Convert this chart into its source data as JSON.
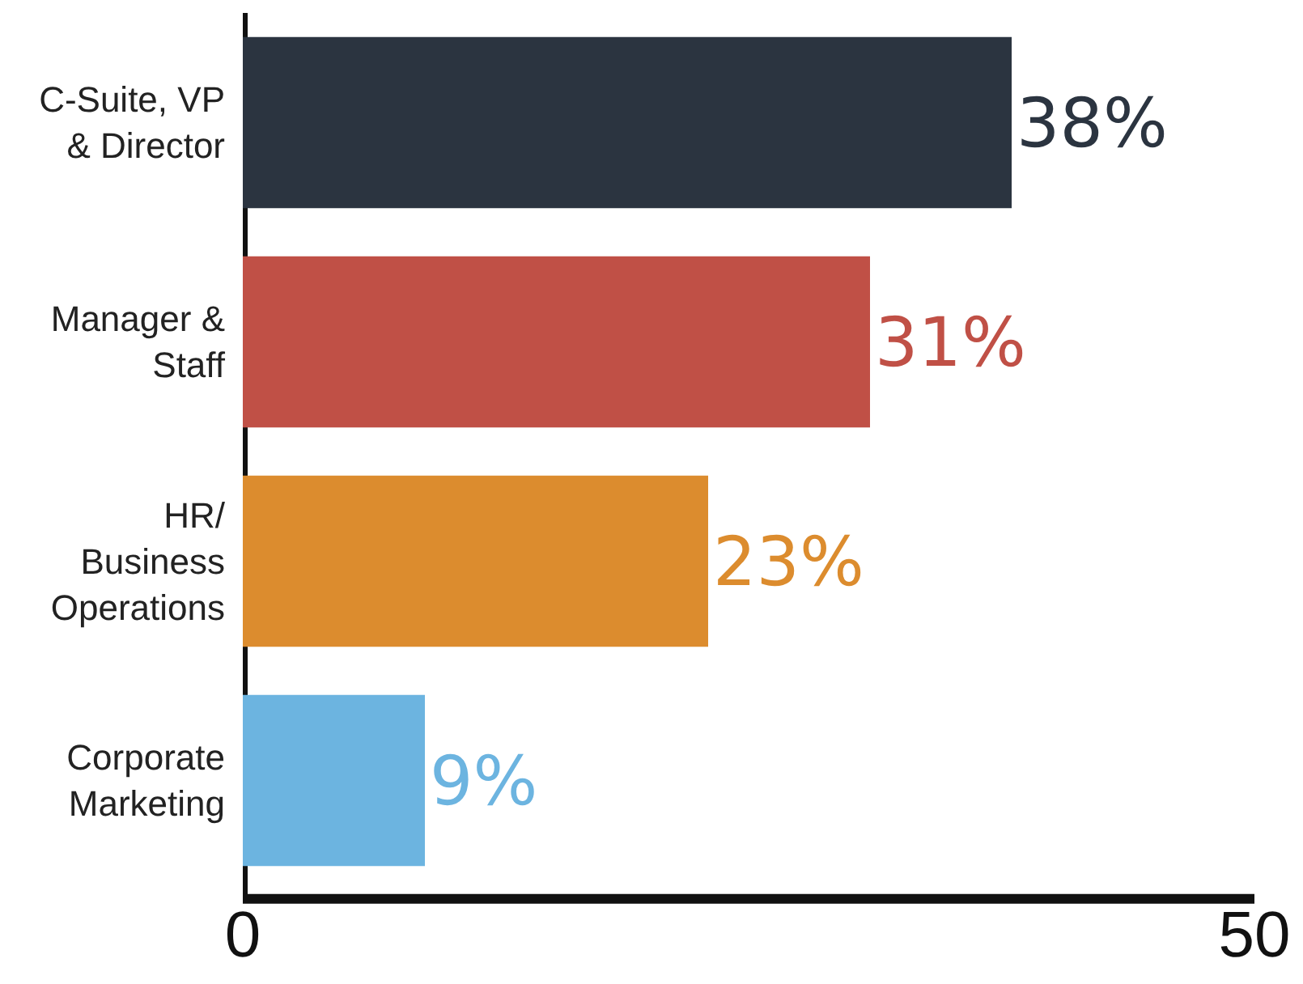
{
  "chart_data": {
    "type": "bar",
    "orientation": "horizontal",
    "categories": [
      "C-Suite, VP\n& Director",
      "Manager &\nStaff",
      "HR/\nBusiness\nOperations",
      "Corporate\nMarketing"
    ],
    "values": [
      38,
      31,
      23,
      9
    ],
    "colors": [
      "#2b3440",
      "#c05046",
      "#dc8c2e",
      "#6cb4e0"
    ],
    "value_labels": [
      "38%",
      "31%",
      "23%",
      "9%"
    ],
    "xlim": [
      0,
      50
    ],
    "xticks": [
      0,
      50
    ]
  }
}
